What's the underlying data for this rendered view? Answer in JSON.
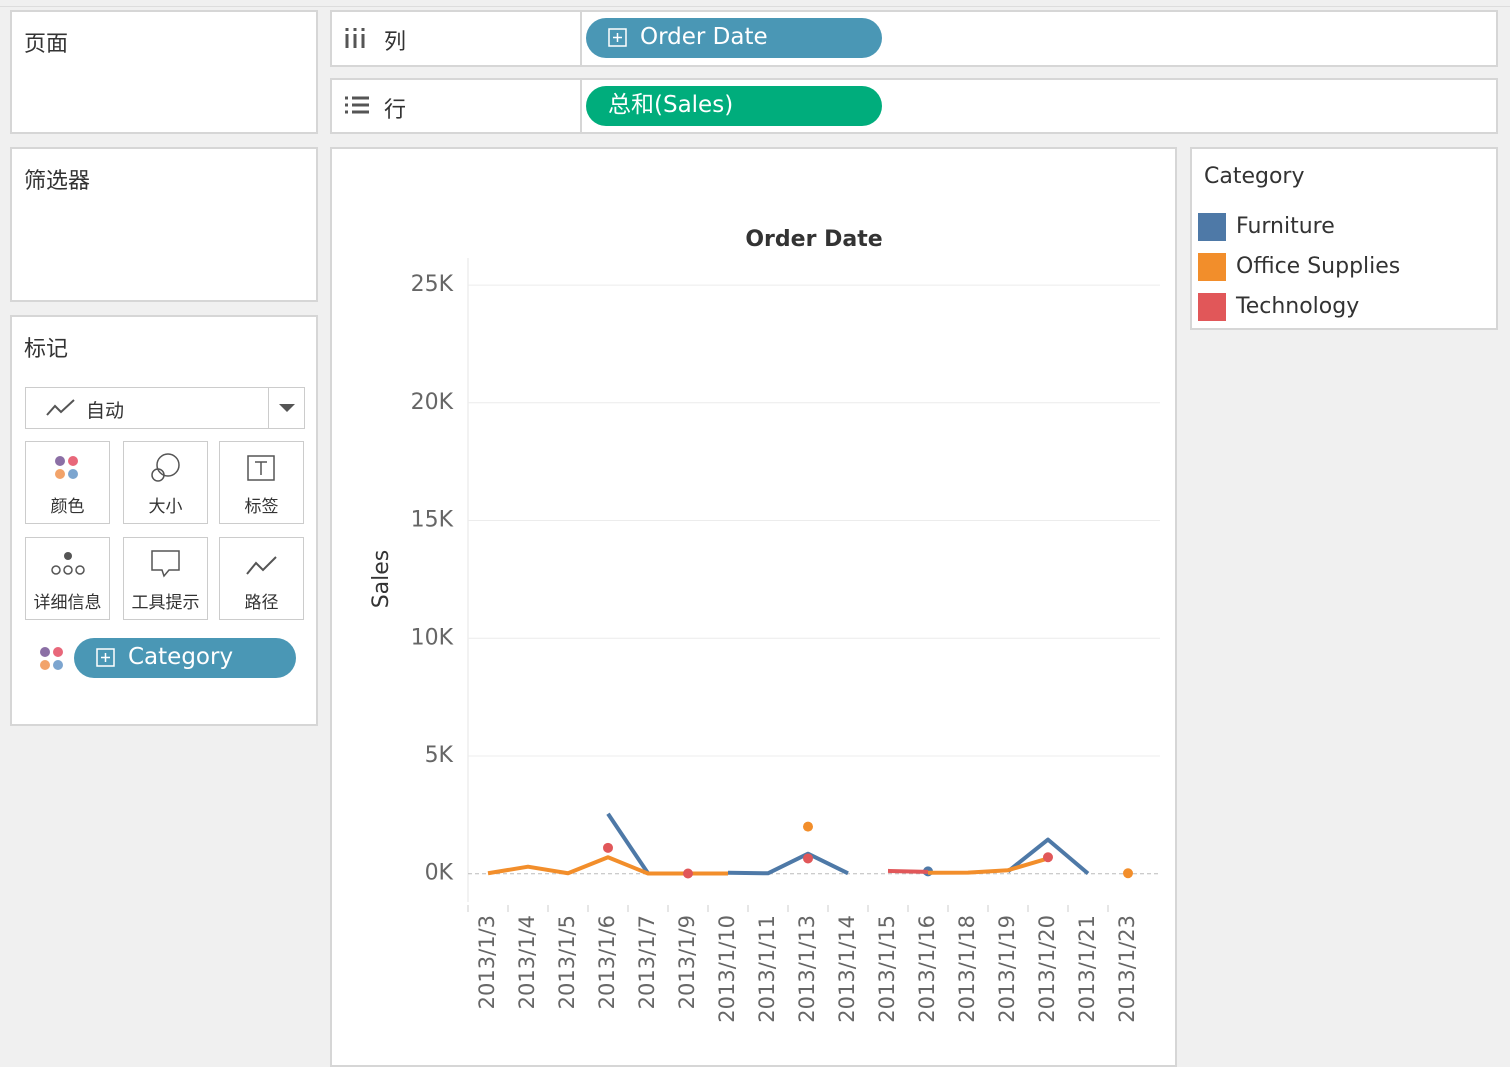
{
  "ui": {
    "pages_title": "页面",
    "columns_label": "列",
    "columns_pill": "Order Date",
    "rows_label": "行",
    "rows_pill": "总和(Sales)",
    "filters_title": "筛选器",
    "marks_title": "标记",
    "mark_type": "自动",
    "mark_buttons": [
      "颜色",
      "大小",
      "标签",
      "详细信息",
      "工具提示",
      "路径"
    ],
    "color_pill": "Category"
  },
  "chart_data": {
    "type": "line",
    "title": "Order Date",
    "y_label": "Sales",
    "legend_title": "Category",
    "categories": [
      "2013/1/3",
      "2013/1/4",
      "2013/1/5",
      "2013/1/6",
      "2013/1/7",
      "2013/1/9",
      "2013/1/10",
      "2013/1/11",
      "2013/1/13",
      "2013/1/14",
      "2013/1/15",
      "2013/1/16",
      "2013/1/18",
      "2013/1/19",
      "2013/1/20",
      "2013/1/21",
      "2013/1/23"
    ],
    "series": [
      {
        "name": "Furniture",
        "color": "#4e79a7",
        "values": [
          null,
          null,
          null,
          2550,
          20,
          null,
          40,
          20,
          850,
          20,
          null,
          100,
          null,
          100,
          1450,
          10,
          null
        ]
      },
      {
        "name": "Office Supplies",
        "color": "#f28e2b",
        "values": [
          20,
          300,
          20,
          700,
          10,
          10,
          10,
          null,
          2000,
          null,
          null,
          40,
          50,
          150,
          650,
          null,
          20
        ]
      },
      {
        "name": "Technology",
        "color": "#e15759",
        "values": [
          null,
          null,
          null,
          1100,
          null,
          10,
          null,
          null,
          650,
          null,
          120,
          80,
          null,
          null,
          700,
          null,
          null
        ]
      }
    ],
    "ylim": [
      -1200,
      26150
    ],
    "yticks": [
      {
        "value": 0,
        "label": "0K"
      },
      {
        "value": 5000,
        "label": "5K"
      },
      {
        "value": 10000,
        "label": "10K"
      },
      {
        "value": 15000,
        "label": "15K"
      },
      {
        "value": 20000,
        "label": "20K"
      },
      {
        "value": 25000,
        "label": "25K"
      }
    ],
    "grid": true
  }
}
